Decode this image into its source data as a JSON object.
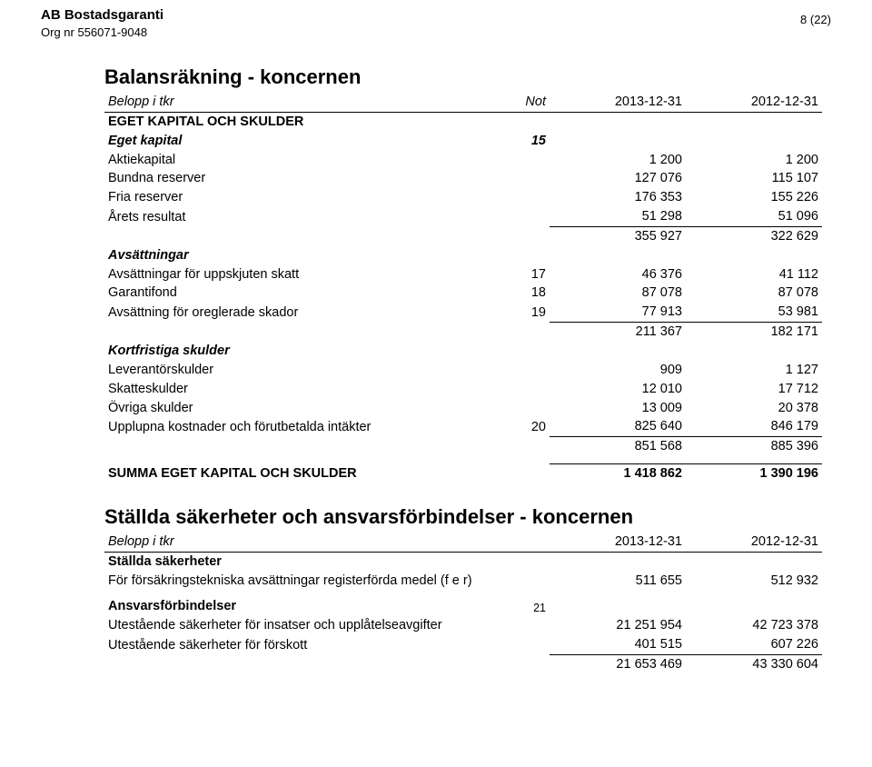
{
  "header": {
    "company": "AB Bostadsgaranti",
    "org": "Org nr 556071-9048",
    "page": "8 (22)"
  },
  "bs": {
    "title": "Balansräkning - koncernen",
    "colhdr": {
      "label": "Belopp i tkr",
      "not": "Not",
      "y1": "2013-12-31",
      "y2": "2012-12-31"
    },
    "sec1": "EGET KAPITAL OCH SKULDER",
    "eget": {
      "title": "Eget kapital",
      "not": "15",
      "rows": [
        {
          "label": "Aktiekapital",
          "not": "",
          "v1": "1 200",
          "v2": "1 200"
        },
        {
          "label": "Bundna reserver",
          "not": "",
          "v1": "127 076",
          "v2": "115 107"
        },
        {
          "label": "Fria reserver",
          "not": "",
          "v1": "176 353",
          "v2": "155 226"
        },
        {
          "label": "Årets resultat",
          "not": "",
          "v1": "51 298",
          "v2": "51 096"
        }
      ],
      "sum": {
        "v1": "355 927",
        "v2": "322 629"
      }
    },
    "avs": {
      "title": "Avsättningar",
      "rows": [
        {
          "label": "Avsättningar för uppskjuten skatt",
          "not": "17",
          "v1": "46 376",
          "v2": "41 112"
        },
        {
          "label": "Garantifond",
          "not": "18",
          "v1": "87 078",
          "v2": "87 078"
        },
        {
          "label": "Avsättning för oreglerade skador",
          "not": "19",
          "v1": "77 913",
          "v2": "53 981"
        }
      ],
      "sum": {
        "v1": "211 367",
        "v2": "182 171"
      }
    },
    "kort": {
      "title": "Kortfristiga skulder",
      "rows": [
        {
          "label": "Leverantörskulder",
          "not": "",
          "v1": "909",
          "v2": "1 127"
        },
        {
          "label": "Skatteskulder",
          "not": "",
          "v1": "12 010",
          "v2": "17 712"
        },
        {
          "label": "Övriga skulder",
          "not": "",
          "v1": "13 009",
          "v2": "20 378"
        },
        {
          "label": "Upplupna kostnader och förutbetalda intäkter",
          "not": "20",
          "v1": "825 640",
          "v2": "846 179"
        }
      ],
      "sum": {
        "v1": "851 568",
        "v2": "885 396"
      }
    },
    "grand": {
      "label": "SUMMA EGET KAPITAL OCH SKULDER",
      "v1": "1 418 862",
      "v2": "1 390 196"
    }
  },
  "pc": {
    "title": "Ställda säkerheter och ansvarsförbindelser - koncernen",
    "colhdr": {
      "label": "Belopp i tkr",
      "y1": "2013-12-31",
      "y2": "2012-12-31"
    },
    "sak": {
      "title": "Ställda säkerheter",
      "rows": [
        {
          "label": "För försäkringstekniska avsättningar registerförda medel (f e r)",
          "not": "",
          "v1": "511 655",
          "v2": "512 932"
        }
      ]
    },
    "ans": {
      "title": "Ansvarsförbindelser",
      "not": "21",
      "rows": [
        {
          "label": "Utestående säkerheter för insatser och upplåtelseavgifter",
          "not": "",
          "v1": "21 251 954",
          "v2": "42 723 378"
        },
        {
          "label": "Utestående säkerheter för förskott",
          "not": "",
          "v1": "401 515",
          "v2": "607 226"
        }
      ],
      "sum": {
        "v1": "21 653 469",
        "v2": "43 330 604"
      }
    }
  }
}
